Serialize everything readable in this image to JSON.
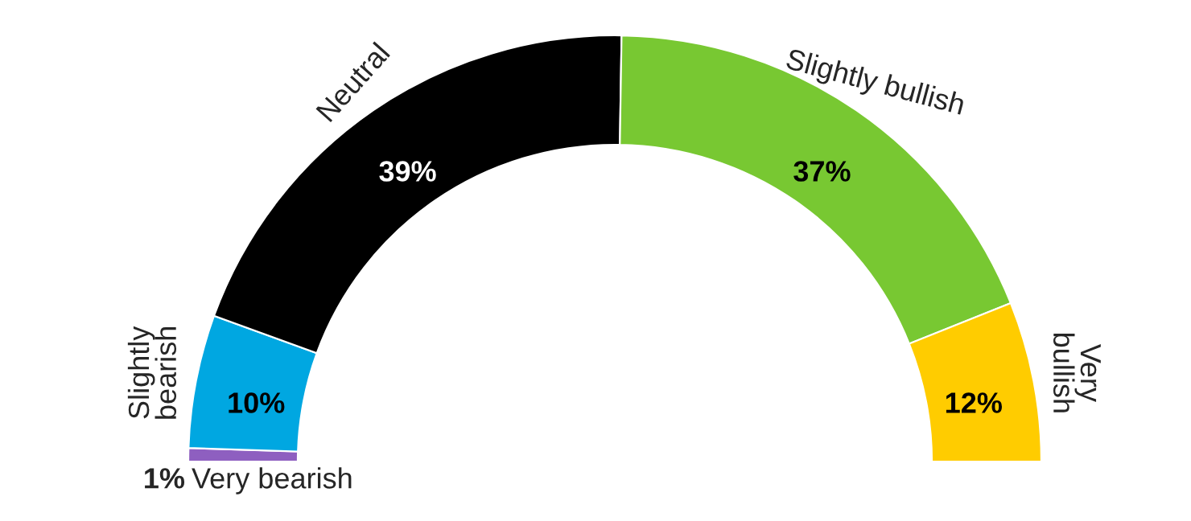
{
  "chart_data": {
    "type": "donut",
    "categories": [
      "Very bearish",
      "Slightly bearish",
      "Neutral",
      "Slightly bullish",
      "Very bullish"
    ],
    "values": [
      1,
      10,
      39,
      37,
      12
    ],
    "value_labels": [
      "1%",
      "10%",
      "39%",
      "37%",
      "12%"
    ],
    "colors": [
      "#8e5fc0",
      "#00a7e1",
      "#000000",
      "#78c832",
      "#ffcc00"
    ]
  }
}
